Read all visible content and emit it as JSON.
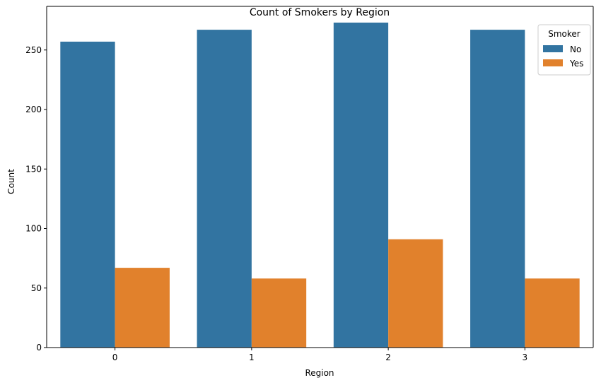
{
  "chart_data": {
    "type": "bar",
    "title": "Count of Smokers by Region",
    "xlabel": "Region",
    "ylabel": "Count",
    "categories": [
      "0",
      "1",
      "2",
      "3"
    ],
    "series": [
      {
        "name": "No",
        "color": "#3274a1",
        "values": [
          257,
          267,
          273,
          267
        ]
      },
      {
        "name": "Yes",
        "color": "#e1812c",
        "values": [
          67,
          58,
          91,
          58
        ]
      }
    ],
    "ylim": [
      0,
      286.65
    ],
    "yticks": [
      0,
      50,
      100,
      150,
      200,
      250
    ],
    "grid": false,
    "legend": {
      "title": "Smoker",
      "placement": "top-right"
    }
  }
}
